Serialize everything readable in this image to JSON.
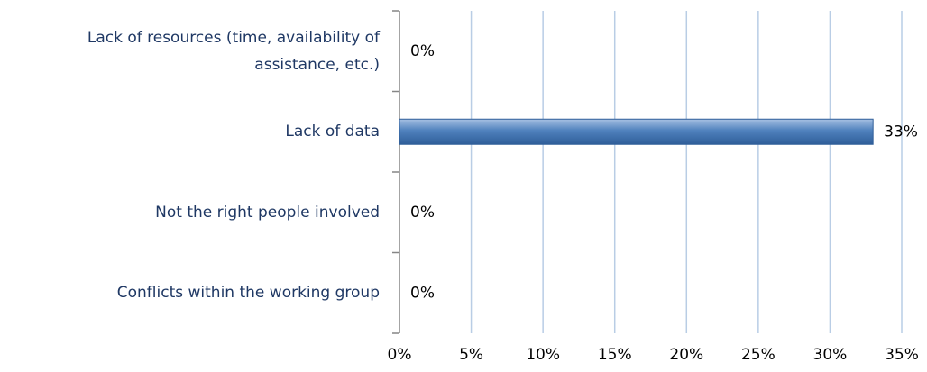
{
  "chart_data": {
    "type": "bar",
    "orientation": "horizontal",
    "categories": [
      "Lack of resources (time, availability of assistance, etc.)",
      "Lack of data",
      "Not the right people involved",
      "Conflicts within the working group"
    ],
    "values": [
      0,
      33,
      0,
      0
    ],
    "value_labels": [
      "0%",
      "33%",
      "0%",
      "0%"
    ],
    "color": "#4f81bd",
    "xlim": [
      0,
      35
    ],
    "xticks": [
      {
        "value": 0,
        "label": "0%"
      },
      {
        "value": 5,
        "label": "5%"
      },
      {
        "value": 10,
        "label": "10%"
      },
      {
        "value": 15,
        "label": "15%"
      },
      {
        "value": 20,
        "label": "20%"
      },
      {
        "value": 25,
        "label": "25%"
      },
      {
        "value": 30,
        "label": "30%"
      },
      {
        "value": 35,
        "label": "35%"
      }
    ],
    "grid": true
  }
}
